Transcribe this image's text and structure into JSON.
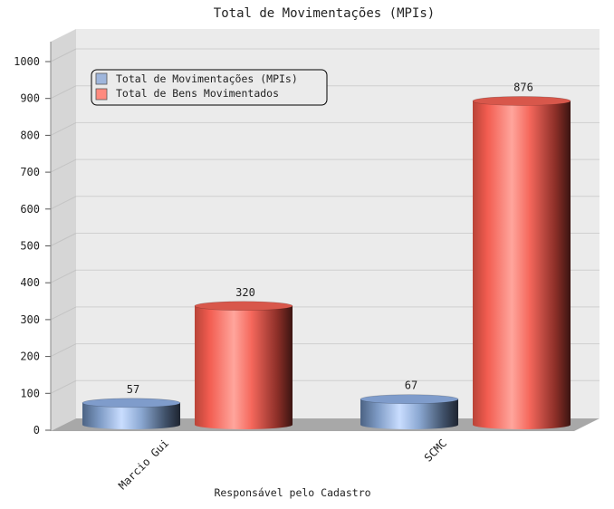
{
  "chart_data": {
    "type": "bar",
    "title": "Total de Movimentações (MPIs)",
    "xlabel": "Responsável pelo Cadastro",
    "ylabel": "",
    "categories": [
      "Marcio Gui",
      "SCMC"
    ],
    "series": [
      {
        "name": "Total de Movimentações (MPIs)",
        "values": [
          57,
          67
        ],
        "color": "#8faee0"
      },
      {
        "name": "Total de Bens Movimentados",
        "values": [
          320,
          876
        ],
        "color": "#f06a5c"
      }
    ],
    "ylim": [
      0,
      1000
    ],
    "yticks": [
      "0",
      "100",
      "200",
      "300",
      "400",
      "500",
      "600",
      "700",
      "800",
      "900",
      "1000"
    ],
    "grid": true,
    "legend_position": "top-left"
  }
}
